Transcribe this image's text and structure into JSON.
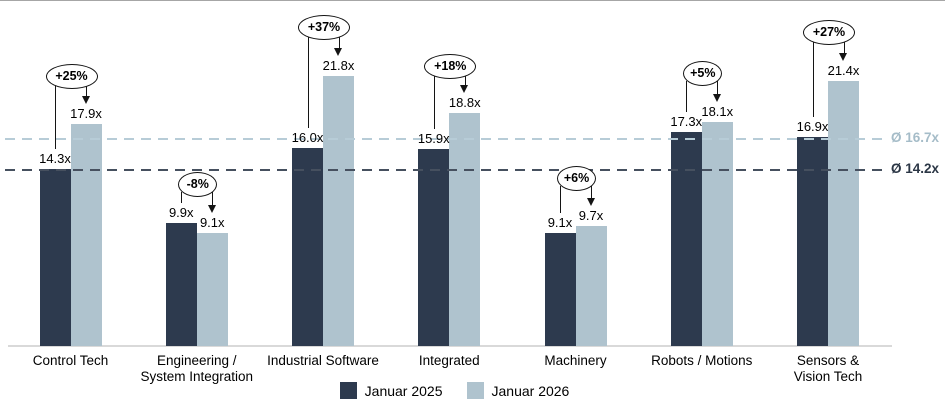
{
  "chart_data": {
    "type": "bar",
    "title": "",
    "categories": [
      "Control Tech",
      "Engineering /\nSystem Integration",
      "Industrial Software",
      "Integrated",
      "Machinery",
      "Robots / Motions",
      "Sensors &\nVision Tech"
    ],
    "series": [
      {
        "name": "Januar 2025",
        "color": "#2d3a4e",
        "values": [
          14.3,
          9.9,
          16.0,
          15.9,
          9.1,
          17.3,
          16.9
        ]
      },
      {
        "name": "Januar 2026",
        "color": "#afc3ce",
        "values": [
          17.9,
          9.1,
          21.8,
          18.8,
          9.7,
          18.1,
          21.4
        ]
      }
    ],
    "value_suffix": "x",
    "deltas": [
      "+25%",
      "-8%",
      "+37%",
      "+18%",
      "+6%",
      "+5%",
      "+27%"
    ],
    "averages": [
      {
        "label": "Ø 16.7x",
        "value": 16.7,
        "line_color": "#b7ccd7",
        "label_color": "#a5bcc8"
      },
      {
        "label": "Ø 14.2x",
        "value": 14.2,
        "line_color": "#46505f",
        "label_color": "#2b3645"
      }
    ],
    "ylim": [
      0,
      27.8
    ],
    "grid": false,
    "legend_position": "bottom"
  }
}
